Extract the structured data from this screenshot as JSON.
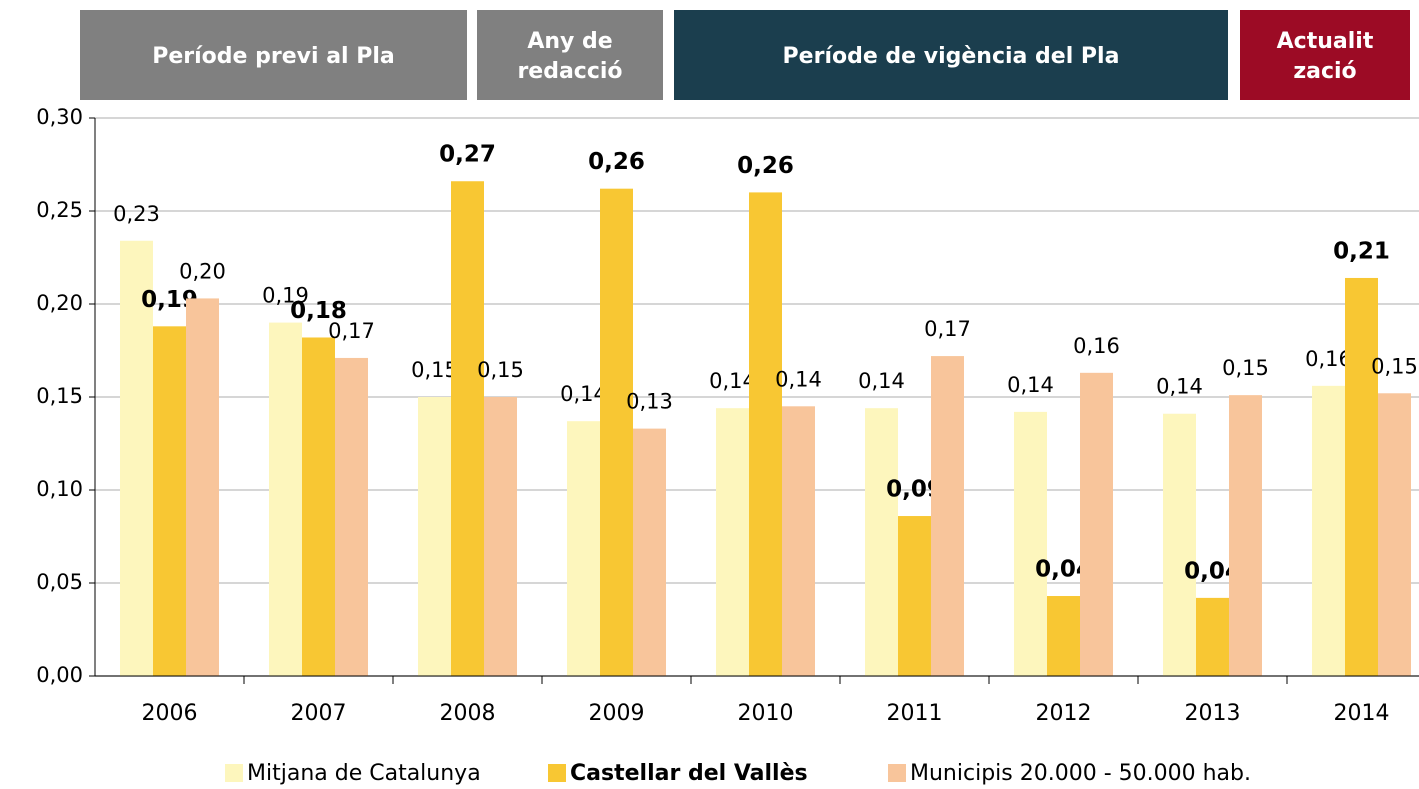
{
  "header": [
    {
      "lines": [
        "Període previ al Pla"
      ],
      "color": "#808080"
    },
    {
      "lines": [
        "Any de",
        "redacció"
      ],
      "color": "#808080"
    },
    {
      "lines": [
        "Període de vigència del Pla"
      ],
      "color": "#1b3e4e"
    },
    {
      "lines": [
        "Actualit",
        "zació"
      ],
      "color": "#9c0b25"
    }
  ],
  "chart_data": {
    "type": "bar",
    "categories": [
      "2006",
      "2007",
      "2008",
      "2009",
      "2010",
      "2011",
      "2012",
      "2013",
      "2014"
    ],
    "series": [
      {
        "name": "Mitjana de Catalunya",
        "color": "#fdf6bd",
        "bold": false,
        "values": [
          0.234,
          0.19,
          0.15,
          0.137,
          0.144,
          0.144,
          0.142,
          0.141,
          0.156
        ],
        "value_labels": [
          "0,23",
          "0,19",
          "0,15",
          "0,14",
          "0,14",
          "0,14",
          "0,14",
          "0,14",
          "0,16"
        ]
      },
      {
        "name": "Castellar del Vallès",
        "color": "#f8c733",
        "bold": true,
        "values": [
          0.188,
          0.182,
          0.266,
          0.262,
          0.26,
          0.086,
          0.043,
          0.042,
          0.214
        ],
        "value_labels": [
          "0,19",
          "0,18",
          "0,27",
          "0,26",
          "0,26",
          "0,09",
          "0,04",
          "0,04",
          "0,21"
        ]
      },
      {
        "name": "Municipis 20.000 - 50.000 hab.",
        "color": "#f8c59b",
        "bold": false,
        "values": [
          0.203,
          0.171,
          0.15,
          0.133,
          0.145,
          0.172,
          0.163,
          0.151,
          0.152
        ],
        "value_labels": [
          "0,20",
          "0,17",
          "0,15",
          "0,13",
          "0,14",
          "0,17",
          "0,16",
          "0,15",
          "0,15"
        ]
      }
    ],
    "ylim": [
      0,
      0.3
    ],
    "yticks": [
      {
        "value": 0,
        "label": "0,00"
      },
      {
        "value": 0.05,
        "label": "0,05"
      },
      {
        "value": 0.1,
        "label": "0,10"
      },
      {
        "value": 0.15,
        "label": "0,15"
      },
      {
        "value": 0.2,
        "label": "0,20"
      },
      {
        "value": 0.25,
        "label": "0,25"
      },
      {
        "value": 0.3,
        "label": "0,30"
      }
    ],
    "grid": true
  }
}
